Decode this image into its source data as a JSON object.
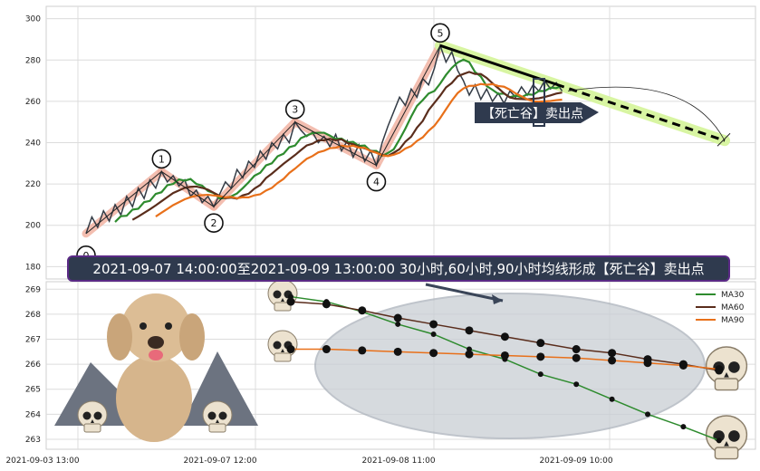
{
  "chart_data": [
    {
      "type": "line",
      "title": "",
      "xlabel": "",
      "ylabel": "",
      "ylim": [
        174,
        306
      ],
      "y_ticks": [
        180,
        200,
        220,
        240,
        260,
        280,
        300
      ],
      "grid": true,
      "price_series": [
        {
          "t": 0,
          "y": 196
        },
        {
          "t": 1,
          "y": 204
        },
        {
          "t": 2,
          "y": 199
        },
        {
          "t": 3,
          "y": 207
        },
        {
          "t": 4,
          "y": 202
        },
        {
          "t": 5,
          "y": 210
        },
        {
          "t": 6,
          "y": 205
        },
        {
          "t": 7,
          "y": 214
        },
        {
          "t": 8,
          "y": 209
        },
        {
          "t": 9,
          "y": 218
        },
        {
          "t": 10,
          "y": 213
        },
        {
          "t": 11,
          "y": 222
        },
        {
          "t": 12,
          "y": 218
        },
        {
          "t": 13,
          "y": 226
        },
        {
          "t": 14,
          "y": 221
        },
        {
          "t": 15,
          "y": 224
        },
        {
          "t": 16,
          "y": 219
        },
        {
          "t": 17,
          "y": 222
        },
        {
          "t": 18,
          "y": 214
        },
        {
          "t": 19,
          "y": 217
        },
        {
          "t": 20,
          "y": 211
        },
        {
          "t": 21,
          "y": 214
        },
        {
          "t": 22,
          "y": 209
        },
        {
          "t": 23,
          "y": 215
        },
        {
          "t": 24,
          "y": 221
        },
        {
          "t": 25,
          "y": 218
        },
        {
          "t": 26,
          "y": 227
        },
        {
          "t": 27,
          "y": 223
        },
        {
          "t": 28,
          "y": 231
        },
        {
          "t": 29,
          "y": 228
        },
        {
          "t": 30,
          "y": 236
        },
        {
          "t": 31,
          "y": 232
        },
        {
          "t": 32,
          "y": 240
        },
        {
          "t": 33,
          "y": 237
        },
        {
          "t": 34,
          "y": 244
        },
        {
          "t": 35,
          "y": 240
        },
        {
          "t": 36,
          "y": 250
        },
        {
          "t": 37,
          "y": 246
        },
        {
          "t": 38,
          "y": 243
        },
        {
          "t": 39,
          "y": 245
        },
        {
          "t": 40,
          "y": 240
        },
        {
          "t": 41,
          "y": 243
        },
        {
          "t": 42,
          "y": 238
        },
        {
          "t": 43,
          "y": 244
        },
        {
          "t": 44,
          "y": 236
        },
        {
          "t": 45,
          "y": 241
        },
        {
          "t": 46,
          "y": 233
        },
        {
          "t": 47,
          "y": 239
        },
        {
          "t": 48,
          "y": 231
        },
        {
          "t": 49,
          "y": 236
        },
        {
          "t": 50,
          "y": 229
        },
        {
          "t": 51,
          "y": 240
        },
        {
          "t": 52,
          "y": 248
        },
        {
          "t": 53,
          "y": 255
        },
        {
          "t": 54,
          "y": 262
        },
        {
          "t": 55,
          "y": 258
        },
        {
          "t": 56,
          "y": 266
        },
        {
          "t": 57,
          "y": 262
        },
        {
          "t": 58,
          "y": 271
        },
        {
          "t": 59,
          "y": 268
        },
        {
          "t": 60,
          "y": 276
        },
        {
          "t": 61,
          "y": 287
        },
        {
          "t": 62,
          "y": 279
        },
        {
          "t": 63,
          "y": 284
        },
        {
          "t": 64,
          "y": 275
        },
        {
          "t": 65,
          "y": 270
        },
        {
          "t": 66,
          "y": 263
        },
        {
          "t": 67,
          "y": 268
        },
        {
          "t": 68,
          "y": 261
        },
        {
          "t": 69,
          "y": 266
        },
        {
          "t": 70,
          "y": 260
        },
        {
          "t": 71,
          "y": 264
        },
        {
          "t": 72,
          "y": 259
        },
        {
          "t": 73,
          "y": 265
        },
        {
          "t": 74,
          "y": 262
        },
        {
          "t": 75,
          "y": 267
        },
        {
          "t": 76,
          "y": 263
        },
        {
          "t": 77,
          "y": 268
        },
        {
          "t": 78,
          "y": 265
        },
        {
          "t": 79,
          "y": 270
        },
        {
          "t": 80,
          "y": 266
        },
        {
          "t": 81,
          "y": 269
        },
        {
          "t": 82,
          "y": 265
        }
      ],
      "waves": [
        {
          "label": "0",
          "t": 0,
          "y": 196
        },
        {
          "label": "1",
          "t": 13,
          "y": 226
        },
        {
          "label": "2",
          "t": 22,
          "y": 209
        },
        {
          "label": "3",
          "t": 36,
          "y": 250
        },
        {
          "label": "4",
          "t": 50,
          "y": 229
        },
        {
          "label": "5",
          "t": 61,
          "y": 287
        }
      ],
      "projection": {
        "from": {
          "t": 61,
          "y": 287
        },
        "to": {
          "t": 110,
          "y": 241
        }
      },
      "annotation": "【死亡谷】卖出点"
    },
    {
      "type": "line",
      "title": "",
      "ylim": [
        262.6,
        269.3
      ],
      "y_ticks": [
        263,
        264,
        265,
        266,
        267,
        268,
        269
      ],
      "x_ticks": [
        "2021-09-03 13:00",
        "2021-09-07 12:00",
        "2021-09-08 11:00",
        "2021-09-09 10:00"
      ],
      "grid": true,
      "legend": "top-right",
      "series": [
        {
          "name": "MA30",
          "color": "#2e8b2e",
          "values": [
            268.7,
            268.5,
            268.1,
            267.6,
            267.2,
            266.6,
            266.2,
            265.6,
            265.2,
            264.6,
            264.0,
            263.5,
            262.95
          ]
        },
        {
          "name": "MA60",
          "color": "#5a2d1c",
          "values": [
            268.5,
            268.4,
            268.15,
            267.85,
            267.6,
            267.35,
            267.1,
            266.85,
            266.6,
            266.45,
            266.2,
            266.0,
            265.75
          ]
        },
        {
          "name": "MA90",
          "color": "#e8701a",
          "values": [
            266.6,
            266.6,
            266.55,
            266.5,
            266.45,
            266.4,
            266.35,
            266.3,
            266.25,
            266.15,
            266.05,
            265.95,
            265.8
          ]
        }
      ]
    }
  ],
  "banner": "2021-09-07 14:00:00至2021-09-09 13:00:00 30小时,60小时,90小时均线形成【死亡谷】卖出点",
  "colors": {
    "price": "#333b45",
    "wave_band": "#f2b3a3",
    "projection_band": "#d8f5a2",
    "banner_bg": "#2f3a4e",
    "banner_border": "#5b2a86",
    "callout_bg": "#2f3a4e",
    "ellipse": "#aab1ba"
  }
}
